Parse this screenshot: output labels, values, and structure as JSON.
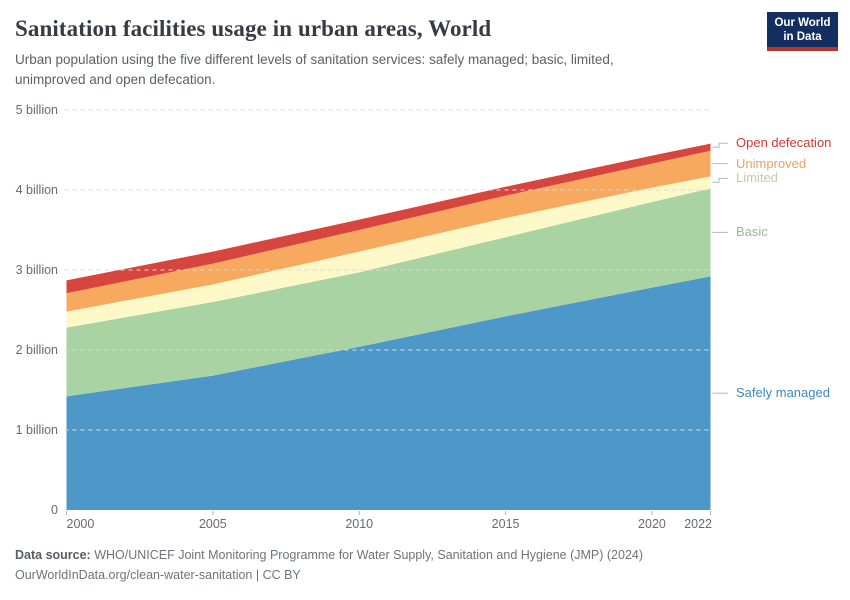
{
  "header": {
    "title": "Sanitation facilities usage in urban areas, World",
    "subtitle_lines": [
      "Urban population using the five different levels of sanitation services: safely managed; basic, limited,",
      "unimproved and open defecation."
    ],
    "logo": {
      "line1": "Our World",
      "line2": "in Data",
      "bg_color": "#142f5f",
      "accent_color": "#b5342c"
    }
  },
  "chart_data": {
    "type": "area",
    "stacked": true,
    "title": "Sanitation facilities usage in urban areas, World",
    "unit": "people",
    "x": [
      2000,
      2005,
      2010,
      2015,
      2020,
      2022
    ],
    "x_tick_labels": [
      "2000",
      "2005",
      "2010",
      "2015",
      "2020",
      "2022"
    ],
    "y_tick_labels": [
      "0",
      "1 billion",
      "2 billion",
      "3 billion",
      "4 billion",
      "5 billion"
    ],
    "y_range_billions": [
      0,
      5
    ],
    "grid": "dashed-horizontal",
    "legend_position": "right-of-plot",
    "series": [
      {
        "name": "Safely managed",
        "values_billions": [
          1.42,
          1.68,
          2.04,
          2.42,
          2.78,
          2.92
        ],
        "fill": "#4e97c9",
        "label_color": "#4288bd"
      },
      {
        "name": "Basic",
        "values_billions": [
          0.86,
          0.92,
          0.93,
          0.99,
          1.07,
          1.1
        ],
        "fill": "#a9d3a2",
        "label_color": "#93c18b"
      },
      {
        "name": "Limited",
        "values_billions": [
          0.2,
          0.22,
          0.26,
          0.24,
          0.18,
          0.15
        ],
        "fill": "#fdf8c7",
        "label_color": "#c5cba3"
      },
      {
        "name": "Unimproved",
        "values_billions": [
          0.23,
          0.26,
          0.27,
          0.28,
          0.3,
          0.32
        ],
        "fill": "#f6a95f",
        "label_color": "#e8a266"
      },
      {
        "name": "Open defecation",
        "values_billions": [
          0.16,
          0.15,
          0.13,
          0.11,
          0.1,
          0.09
        ],
        "fill": "#d6453e",
        "label_color": "#d23a33"
      }
    ]
  },
  "footer": {
    "source_label": "Data source:",
    "source_text": " WHO/UNICEF Joint Monitoring Programme for Water Supply, Sanitation and Hygiene (JMP) (2024)",
    "link_text": "OurWorldInData.org/clean-water-sanitation | CC BY"
  }
}
